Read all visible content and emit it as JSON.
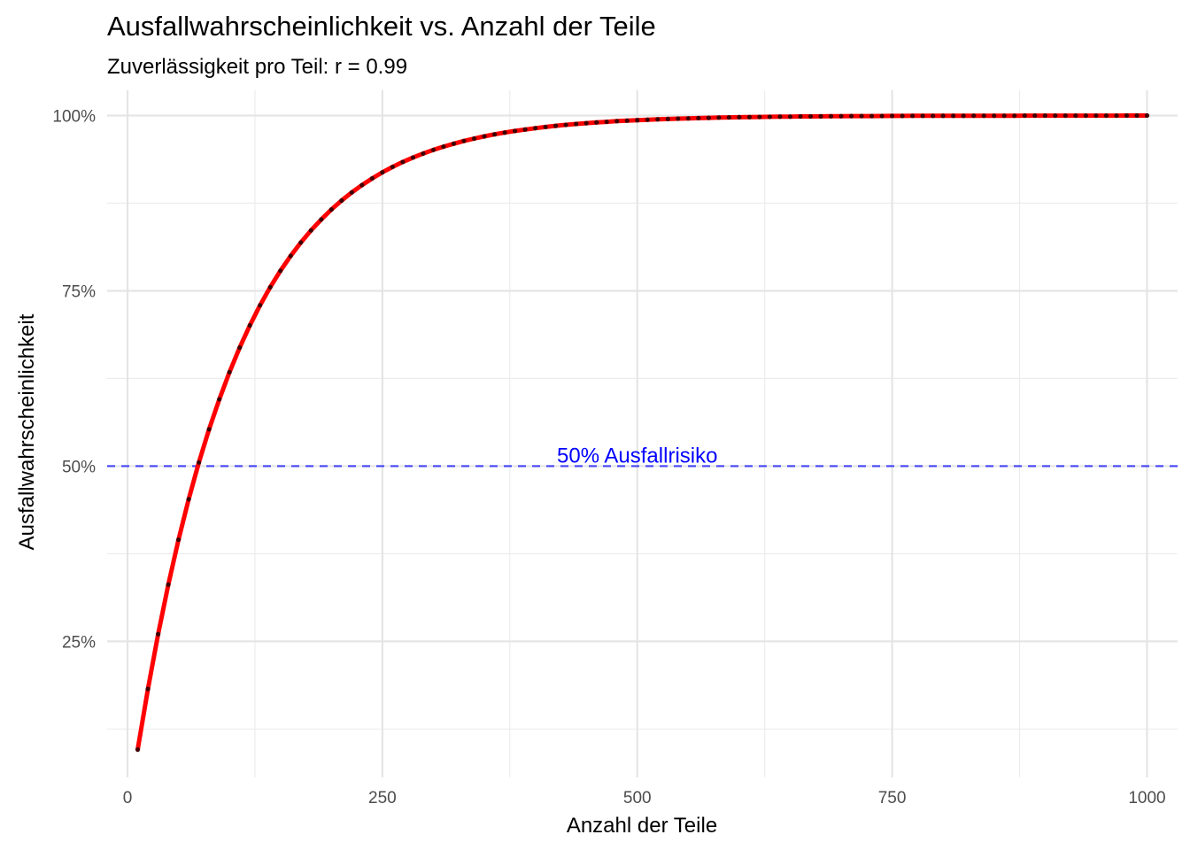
{
  "chart_data": {
    "type": "line",
    "title": "Ausfallwahrscheinlichkeit vs. Anzahl der Teile",
    "subtitle": "Zuverlässigkeit pro Teil: r = 0.99",
    "xlabel": "Anzahl der Teile",
    "ylabel": "Ausfallwahrscheinlichkeit",
    "xlim": [
      -20,
      1030
    ],
    "ylim": [
      0.056,
      1.036
    ],
    "x_ticks": [
      0,
      250,
      500,
      750,
      1000
    ],
    "x_tick_labels": [
      "0",
      "250",
      "500",
      "750",
      "1000"
    ],
    "x_minor_ticks": [
      125,
      375,
      625,
      875
    ],
    "y_ticks": [
      0.25,
      0.5,
      0.75,
      1.0
    ],
    "y_tick_labels": [
      "25%",
      "50%",
      "75%",
      "100%"
    ],
    "y_minor_ticks": [
      0.125,
      0.375,
      0.625,
      0.875
    ],
    "grid": true,
    "legend": "none",
    "series": [
      {
        "color": "#ff0000",
        "point_color": "#000000",
        "x": [
          10,
          20,
          30,
          40,
          50,
          60,
          70,
          80,
          90,
          100,
          110,
          120,
          130,
          140,
          150,
          160,
          170,
          180,
          190,
          200,
          210,
          220,
          230,
          240,
          250,
          260,
          270,
          280,
          290,
          300,
          310,
          320,
          330,
          340,
          350,
          360,
          370,
          380,
          390,
          400,
          410,
          420,
          430,
          440,
          450,
          460,
          470,
          480,
          490,
          500,
          510,
          520,
          530,
          540,
          550,
          560,
          570,
          580,
          590,
          600,
          610,
          620,
          630,
          640,
          650,
          660,
          670,
          680,
          690,
          700,
          710,
          720,
          730,
          740,
          750,
          760,
          770,
          780,
          790,
          800,
          810,
          820,
          830,
          840,
          850,
          860,
          870,
          880,
          890,
          900,
          910,
          920,
          930,
          940,
          950,
          960,
          970,
          980,
          990,
          1000
        ],
        "y": [
          0.0956,
          0.1821,
          0.2603,
          0.331,
          0.395,
          0.4528,
          0.5052,
          0.5525,
          0.5953,
          0.634,
          0.669,
          0.7007,
          0.7294,
          0.7552,
          0.7786,
          0.7998,
          0.8189,
          0.8362,
          0.8518,
          0.866,
          0.8788,
          0.8904,
          0.9009,
          0.9104,
          0.919,
          0.9268,
          0.9338,
          0.9401,
          0.9458,
          0.951,
          0.9557,
          0.9599,
          0.9638,
          0.9672,
          0.9703,
          0.9732,
          0.9757,
          0.978,
          0.9801,
          0.982,
          0.9837,
          0.9853,
          0.9867,
          0.988,
          0.9891,
          0.9902,
          0.9911,
          0.992,
          0.9927,
          0.9934,
          0.994,
          0.9946,
          0.9951,
          0.9956,
          0.996,
          0.9964,
          0.9967,
          0.9971,
          0.9974,
          0.9976,
          0.9978,
          0.998,
          0.9982,
          0.9984,
          0.9985,
          0.9987,
          0.9988,
          0.9989,
          0.999,
          0.9991,
          0.9992,
          0.9993,
          0.9993,
          0.9994,
          0.9995,
          0.9995,
          0.9996,
          0.9996,
          0.9996,
          0.9997,
          0.9997,
          0.9997,
          0.9998,
          0.9998,
          0.9998,
          0.9998,
          0.9998,
          0.9999,
          0.9999,
          0.9999,
          0.9999,
          0.9999,
          0.9999,
          0.9999,
          0.9999,
          0.9999,
          0.9999,
          1.0,
          1.0,
          1.0
        ]
      }
    ],
    "reference_line": {
      "y": 0.5,
      "color": "#0000ff",
      "style": "dashed",
      "label": "50% Ausfallrisiko",
      "label_x": 500
    }
  }
}
